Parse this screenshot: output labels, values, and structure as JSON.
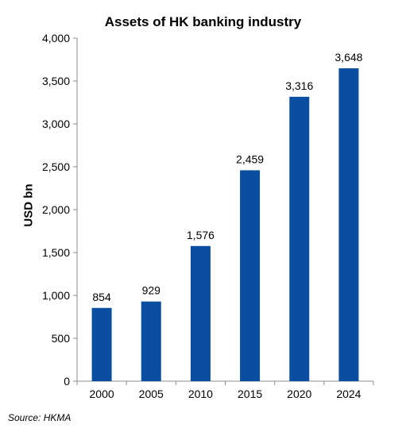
{
  "chart_data": {
    "type": "bar",
    "title": "Assets of HK banking industry",
    "xlabel": "",
    "ylabel": "USD bn",
    "categories": [
      "2000",
      "2005",
      "2010",
      "2015",
      "2020",
      "2024"
    ],
    "values": [
      854,
      929,
      1576,
      2459,
      3316,
      3648
    ],
    "data_labels": [
      "854",
      "929",
      "1,576",
      "2,459",
      "3,316",
      "3,648"
    ],
    "ylim": [
      0,
      4000
    ],
    "yticks": [
      0,
      500,
      1000,
      1500,
      2000,
      2500,
      3000,
      3500,
      4000
    ],
    "ytick_labels": [
      "0",
      "500",
      "1,000",
      "1,500",
      "2,000",
      "2,500",
      "3,000",
      "3,500",
      "4,000"
    ],
    "grid": false,
    "legend": "none",
    "bar_color": "#0a4ea1",
    "source": "Source: HKMA"
  }
}
